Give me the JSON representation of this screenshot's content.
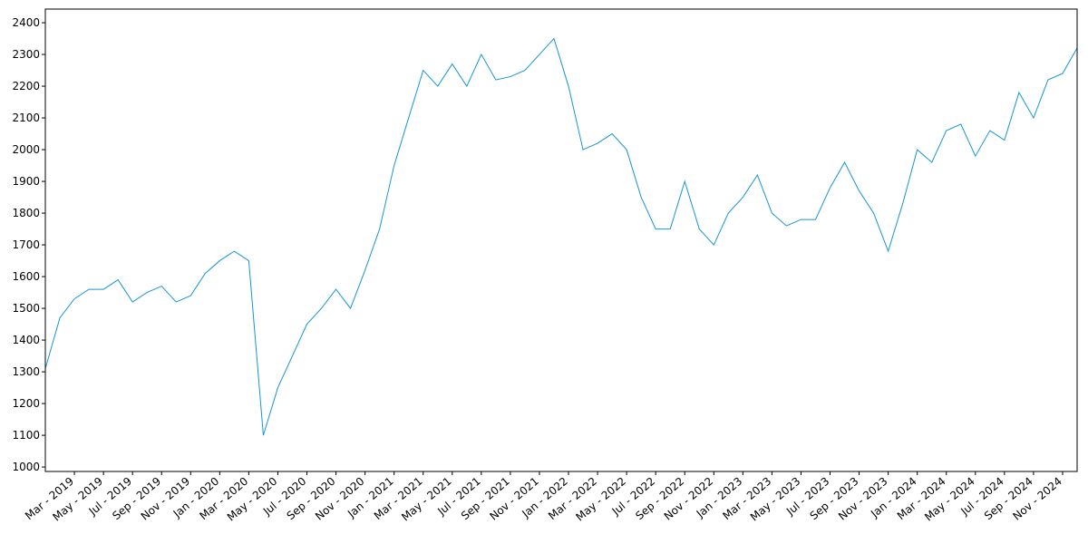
{
  "chart_data": {
    "type": "line",
    "x": [
      "2019-01",
      "2019-02",
      "2019-03",
      "2019-04",
      "2019-05",
      "2019-06",
      "2019-07",
      "2019-08",
      "2019-09",
      "2019-10",
      "2019-11",
      "2019-12",
      "2020-01",
      "2020-02",
      "2020-03",
      "2020-04",
      "2020-05",
      "2020-06",
      "2020-07",
      "2020-08",
      "2020-09",
      "2020-10",
      "2020-11",
      "2020-12",
      "2021-01",
      "2021-02",
      "2021-03",
      "2021-04",
      "2021-05",
      "2021-06",
      "2021-07",
      "2021-08",
      "2021-09",
      "2021-10",
      "2021-11",
      "2021-12",
      "2022-01",
      "2022-02",
      "2022-03",
      "2022-04",
      "2022-05",
      "2022-06",
      "2022-07",
      "2022-08",
      "2022-09",
      "2022-10",
      "2022-11",
      "2022-12",
      "2023-01",
      "2023-02",
      "2023-03",
      "2023-04",
      "2023-05",
      "2023-06",
      "2023-07",
      "2023-08",
      "2023-09",
      "2023-10",
      "2023-11",
      "2023-12",
      "2024-01",
      "2024-02",
      "2024-03",
      "2024-04",
      "2024-05",
      "2024-06",
      "2024-07",
      "2024-08",
      "2024-09",
      "2024-10",
      "2024-11",
      "2024-12"
    ],
    "series": [
      {
        "color": "#1696d6",
        "values": [
          1310,
          1470,
          1530,
          1560,
          1560,
          1590,
          1520,
          1550,
          1570,
          1520,
          1540,
          1610,
          1650,
          1680,
          1650,
          1100,
          1250,
          1350,
          1450,
          1500,
          1560,
          1500,
          1620,
          1750,
          1950,
          2100,
          2250,
          2200,
          2270,
          2200,
          2300,
          2220,
          2230,
          2250,
          2300,
          2350,
          2200,
          2000,
          2020,
          2050,
          2000,
          1850,
          1750,
          1750,
          1900,
          1750,
          1700,
          1800,
          1850,
          1920,
          1800,
          1760,
          1780,
          1780,
          1880,
          1960,
          1870,
          1800,
          1680,
          1830,
          2000,
          1960,
          2060,
          2080,
          1980,
          2060,
          2030,
          2180,
          2100,
          2220,
          2240,
          2320
        ]
      }
    ],
    "xlim": [
      "2019-01",
      "2024-12"
    ],
    "xticks": [
      {
        "value": "2019-03",
        "label": "Mar - 2019"
      },
      {
        "value": "2019-05",
        "label": "May - 2019"
      },
      {
        "value": "2019-07",
        "label": "Jul - 2019"
      },
      {
        "value": "2019-09",
        "label": "Sep - 2019"
      },
      {
        "value": "2019-11",
        "label": "Nov - 2019"
      },
      {
        "value": "2020-01",
        "label": "Jan - 2020"
      },
      {
        "value": "2020-03",
        "label": "Mar - 2020"
      },
      {
        "value": "2020-05",
        "label": "May - 2020"
      },
      {
        "value": "2020-07",
        "label": "Jul - 2020"
      },
      {
        "value": "2020-09",
        "label": "Sep - 2020"
      },
      {
        "value": "2020-11",
        "label": "Nov - 2020"
      },
      {
        "value": "2021-01",
        "label": "Jan - 2021"
      },
      {
        "value": "2021-03",
        "label": "Mar - 2021"
      },
      {
        "value": "2021-05",
        "label": "May - 2021"
      },
      {
        "value": "2021-07",
        "label": "Jul - 2021"
      },
      {
        "value": "2021-09",
        "label": "Sep - 2021"
      },
      {
        "value": "2021-11",
        "label": "Nov - 2021"
      },
      {
        "value": "2022-01",
        "label": "Jan - 2022"
      },
      {
        "value": "2022-03",
        "label": "Mar - 2022"
      },
      {
        "value": "2022-05",
        "label": "May - 2022"
      },
      {
        "value": "2022-07",
        "label": "Jul - 2022"
      },
      {
        "value": "2022-09",
        "label": "Sep - 2022"
      },
      {
        "value": "2022-11",
        "label": "Nov - 2022"
      },
      {
        "value": "2023-01",
        "label": "Jan - 2023"
      },
      {
        "value": "2023-03",
        "label": "Mar - 2023"
      },
      {
        "value": "2023-05",
        "label": "May - 2023"
      },
      {
        "value": "2023-07",
        "label": "Jul - 2023"
      },
      {
        "value": "2023-09",
        "label": "Sep - 2023"
      },
      {
        "value": "2023-11",
        "label": "Nov - 2023"
      },
      {
        "value": "2024-01",
        "label": "Jan - 2024"
      },
      {
        "value": "2024-03",
        "label": "Mar - 2024"
      },
      {
        "value": "2024-05",
        "label": "May - 2024"
      },
      {
        "value": "2024-07",
        "label": "Jul - 2024"
      },
      {
        "value": "2024-09",
        "label": "Sep - 2024"
      },
      {
        "value": "2024-11",
        "label": "Nov - 2024"
      }
    ],
    "ylim": [
      986,
      2443
    ],
    "yticks": [
      1000,
      1100,
      1200,
      1300,
      1400,
      1500,
      1600,
      1700,
      1800,
      1900,
      2000,
      2100,
      2200,
      2300,
      2400
    ],
    "grid": false
  }
}
